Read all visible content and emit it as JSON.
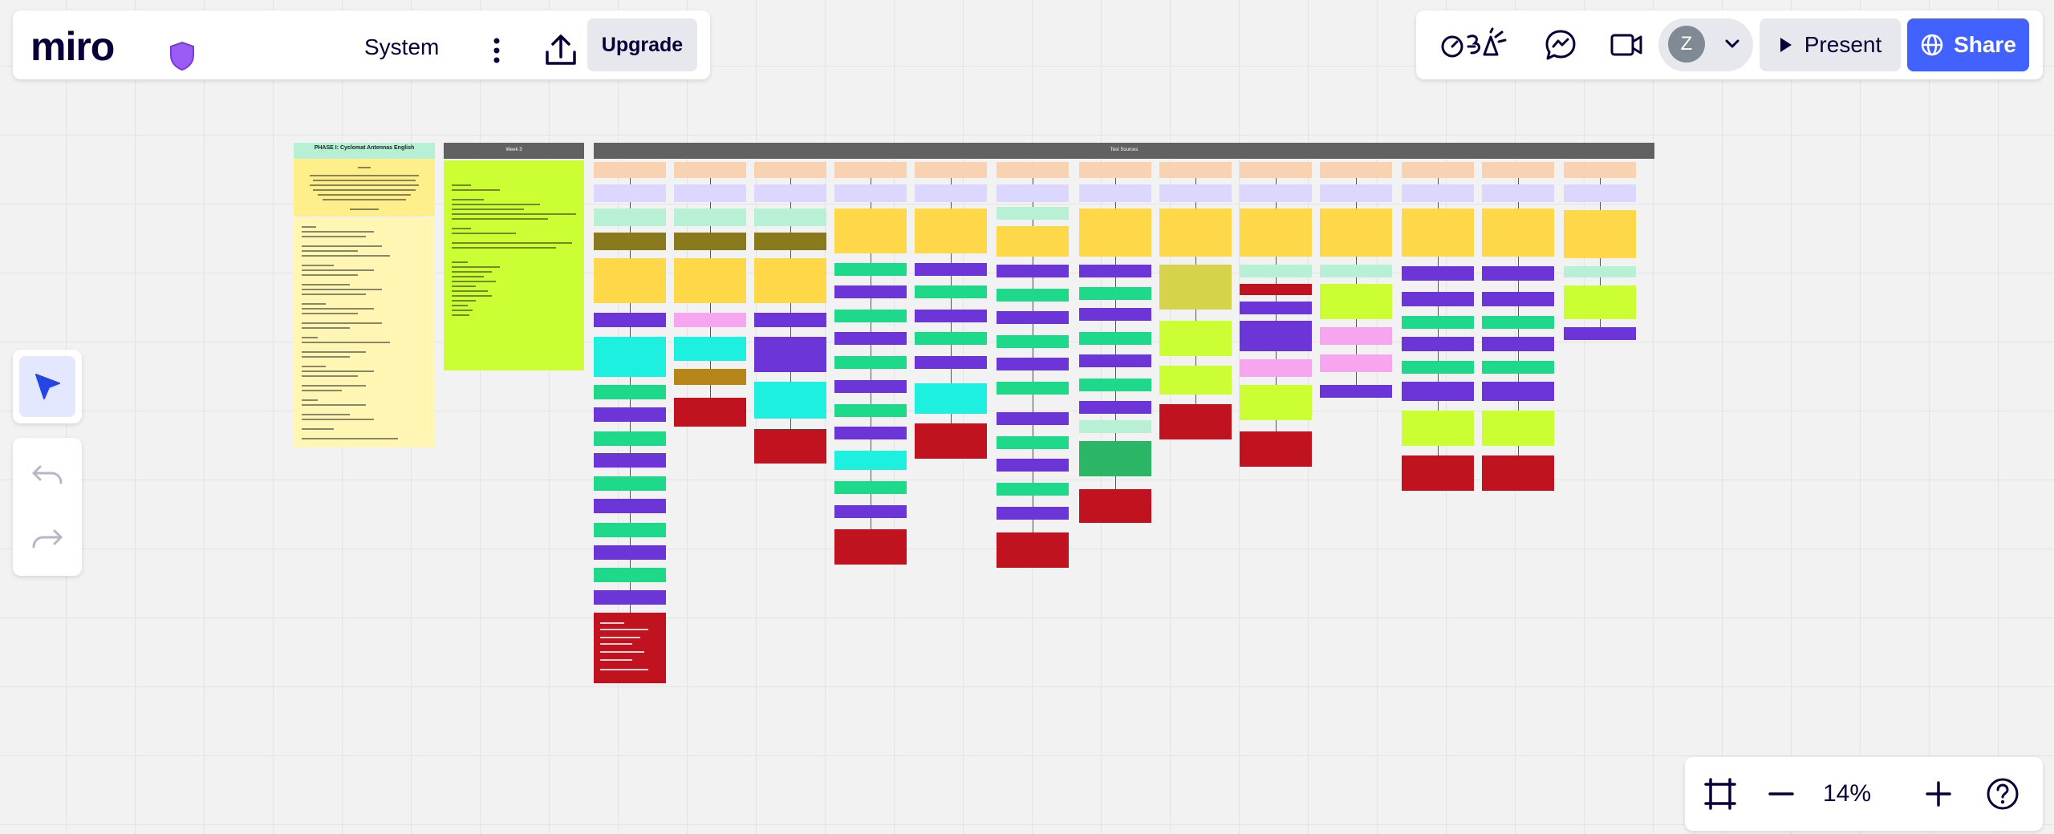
{
  "app": {
    "logo": "miro",
    "board_name": "System"
  },
  "toolbar": {
    "upgrade_label": "Upgrade",
    "present_label": "Present",
    "share_label": "Share",
    "avatar_initial": "Z"
  },
  "zoom": {
    "level": "14%"
  },
  "icons": {
    "shield": "shield-icon",
    "more": "vertical-dots-icon",
    "export": "upload-icon",
    "reactions": "reactions-icon",
    "chat": "chat-icon",
    "video": "video-icon",
    "select": "cursor-arrow-icon",
    "undo": "undo-icon",
    "redo": "redo-icon",
    "fit": "fit-to-screen-icon",
    "zoom_out": "minus-icon",
    "zoom_in": "plus-icon",
    "help": "help-icon"
  },
  "colors": {
    "accent": "#4262ff",
    "shield": "#9a5cf5",
    "canvas": "#f2f2f2",
    "peach": "#f9d3b1",
    "lavender": "#dcd7ff",
    "mint": "#b8f0d6",
    "olive": "#8a7a1e",
    "yellow": "#ffd84a",
    "purple": "#6b35d8",
    "green": "#1ed98a",
    "cyan": "#1ef0e0",
    "red": "#c1121f",
    "lime": "#ccff33",
    "pink": "#f7a5ef",
    "brown": "#b68618",
    "pale_yellow": "#fff6b3",
    "dark_green": "#2bb665",
    "khaki": "#d6d34a",
    "dark_gray": "#616161"
  },
  "board": {
    "frame1_title": "PHASE I: Cyclomat Antennas English",
    "frame2_title": "Week 3",
    "frame3_title": "Test Sources"
  }
}
